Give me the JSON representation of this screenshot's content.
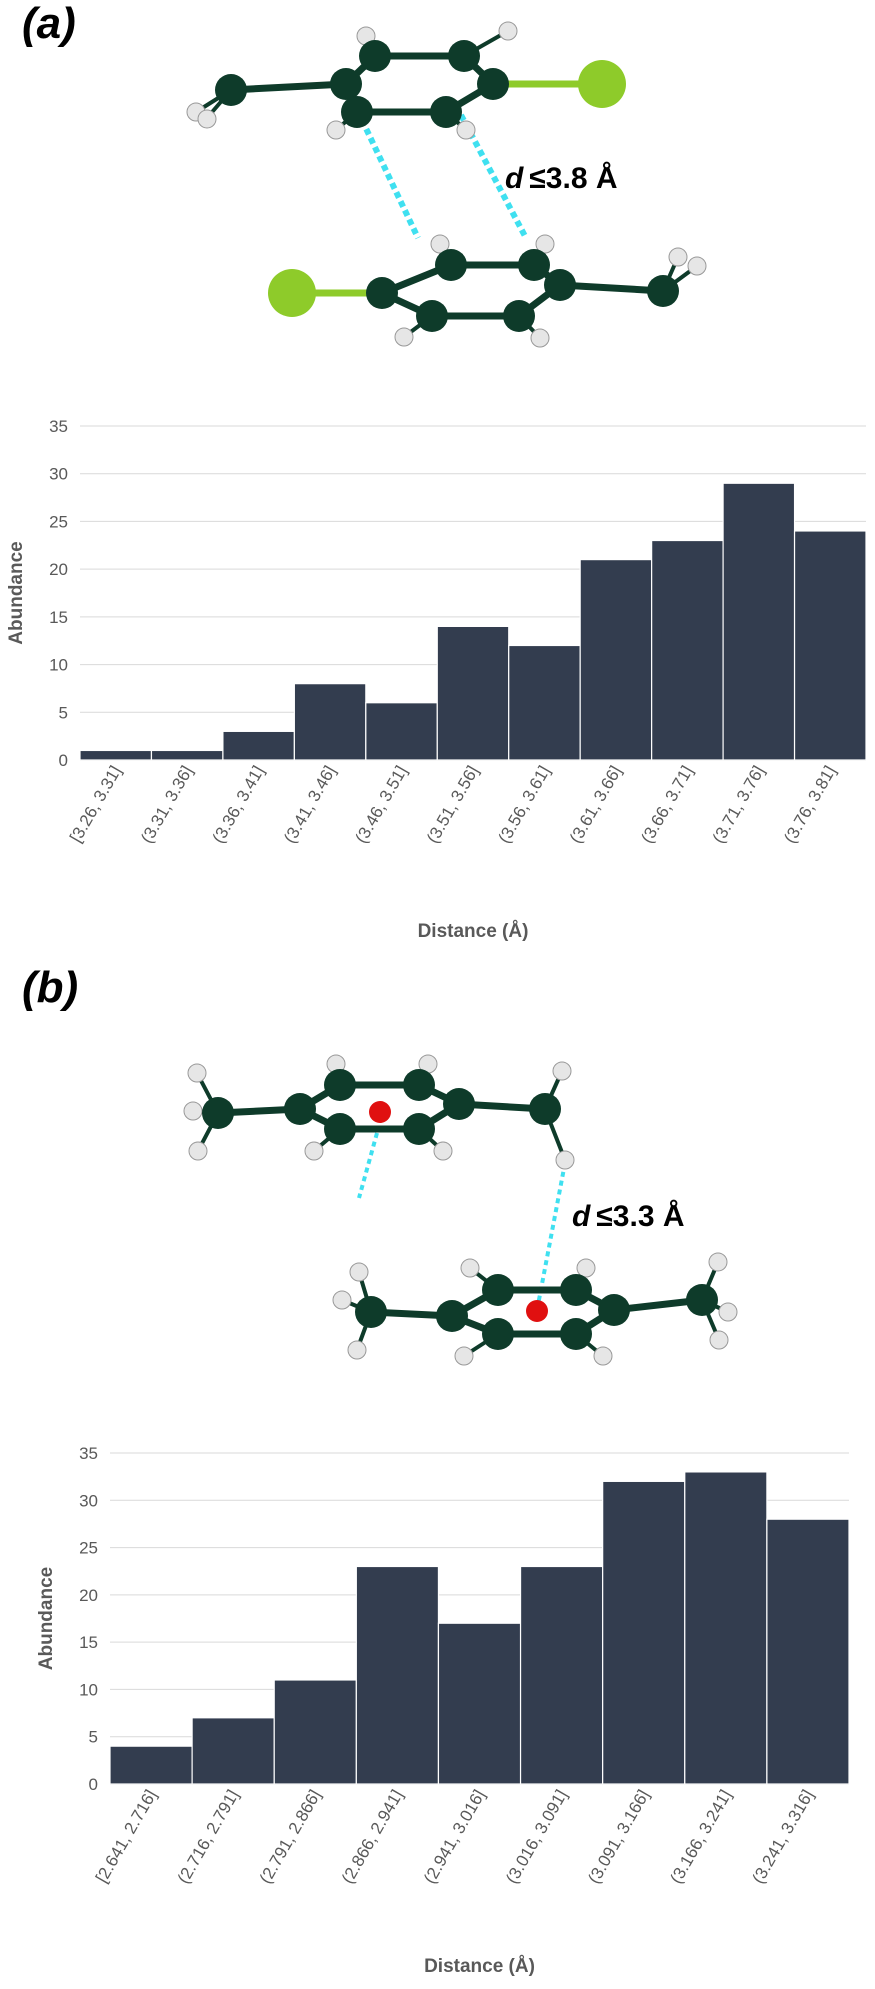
{
  "panels": {
    "a": {
      "label": "(a)",
      "distance_prefix": "d",
      "distance_text": "≤3.8 Å"
    },
    "b": {
      "label": "(b)",
      "distance_prefix": "d",
      "distance_text": "≤3.3 Å"
    }
  },
  "colors": {
    "bar": "#333d4f",
    "carbon": "#0e3b2a",
    "hydrogen": "#e6e6e6",
    "chlorine": "#8ecb2a",
    "centroid": "#e01010",
    "contact": "#3fe0f0"
  },
  "chart_data": [
    {
      "type": "bar",
      "categories": [
        "[3.26, 3.31]",
        "(3.31, 3.36]",
        "(3.36, 3.41]",
        "(3.41, 3.46]",
        "(3.46, 3.51]",
        "(3.51, 3.56]",
        "(3.56, 3.61]",
        "(3.61, 3.66]",
        "(3.66, 3.71]",
        "(3.71, 3.76]",
        "(3.76, 3.81]"
      ],
      "values": [
        1,
        1,
        3,
        8,
        6,
        14,
        12,
        21,
        23,
        29,
        24
      ],
      "xlabel": "Distance (Å)",
      "ylabel": "Abundance",
      "ylim": [
        0,
        35
      ],
      "yticks": [
        0,
        5,
        10,
        15,
        20,
        25,
        30,
        35
      ],
      "grid": true
    },
    {
      "type": "bar",
      "categories": [
        "[2.641, 2.716]",
        "(2.716, 2.791]",
        "(2.791, 2.866]",
        "(2.866, 2.941]",
        "(2.941, 3.016]",
        "(3.016, 3.091]",
        "(3.091, 3.166]",
        "(3.166, 3.241]",
        "(3.241, 3.316]"
      ],
      "values": [
        4,
        7,
        11,
        23,
        17,
        23,
        32,
        33,
        28
      ],
      "xlabel": "Distance (Å)",
      "ylabel": "Abundance",
      "ylim": [
        0,
        35
      ],
      "yticks": [
        0,
        5,
        10,
        15,
        20,
        25,
        30,
        35
      ],
      "grid": true
    }
  ]
}
